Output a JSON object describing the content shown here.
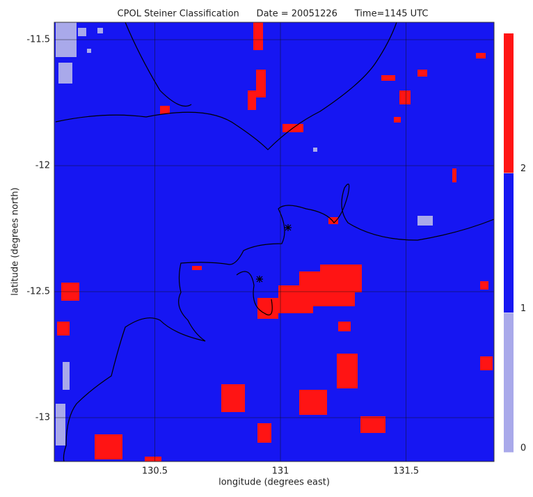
{
  "chart_data": {
    "type": "classification-map",
    "title": "CPOL Steiner Classification      Date = 20051226      Time=1145 UTC",
    "x_label": "longitude (degrees east)",
    "y_label": "latitude (degrees north)",
    "xlim": [
      130.1,
      131.85
    ],
    "xticks": [
      130.5,
      131.0,
      131.5
    ],
    "ylim": [
      -13.174,
      -11.431
    ],
    "yticks": [
      -11.5,
      -12.0,
      -12.5,
      -13.0
    ],
    "grid": true,
    "classes": [
      0,
      1,
      2
    ],
    "colors": [
      "#a9a9ea",
      "#1616f2",
      "#ff1414"
    ],
    "colorbar_lim": [
      0,
      3
    ],
    "colorbar_ticks": [
      0,
      1,
      2
    ]
  }
}
